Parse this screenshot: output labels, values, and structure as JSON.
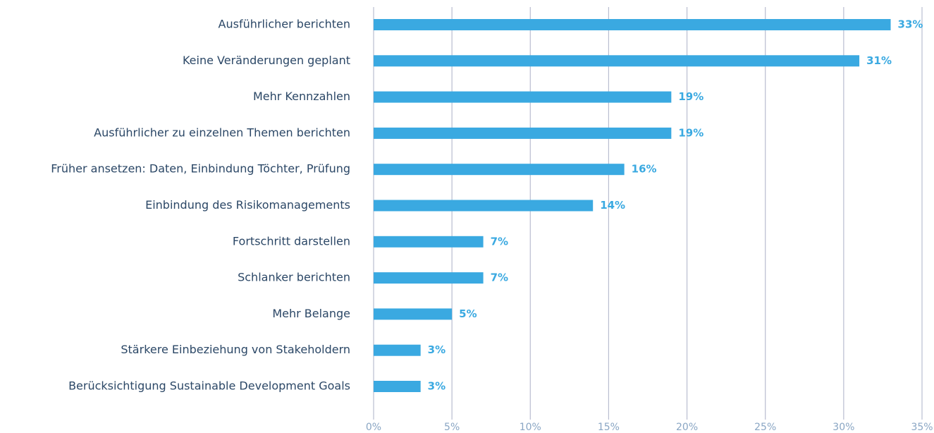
{
  "chart_data": {
    "type": "hbar",
    "categories": [
      "Ausführlicher berichten",
      "Keine Veränderungen geplant",
      "Mehr Kennzahlen",
      "Ausführlicher zu einzelnen Themen berichten",
      "Früher ansetzen: Daten, Einbindung Töchter, Prüfung",
      "Einbindung des Risikomanagements",
      "Fortschritt darstellen",
      "Schlanker berichten",
      "Mehr Belange",
      "Stärkere Einbeziehung von Stakeholdern",
      "Berücksichtigung Sustainable Development Goals"
    ],
    "values": [
      33,
      31,
      19,
      19,
      16,
      14,
      7,
      7,
      5,
      3,
      3
    ],
    "value_labels": [
      "33%",
      "31%",
      "19%",
      "19%",
      "16%",
      "14%",
      "7%",
      "7%",
      "5%",
      "3%",
      "3%"
    ],
    "color": "#3aa9e1",
    "xlim": [
      0,
      35
    ],
    "xticks": [
      {
        "value": 0,
        "label": "0%"
      },
      {
        "value": 5,
        "label": "5%"
      },
      {
        "value": 10,
        "label": "10%"
      },
      {
        "value": 15,
        "label": "15%"
      },
      {
        "value": 20,
        "label": "20%"
      },
      {
        "value": 25,
        "label": "25%"
      },
      {
        "value": 30,
        "label": "30%"
      },
      {
        "value": 35,
        "label": "35%"
      }
    ],
    "grid": true
  }
}
